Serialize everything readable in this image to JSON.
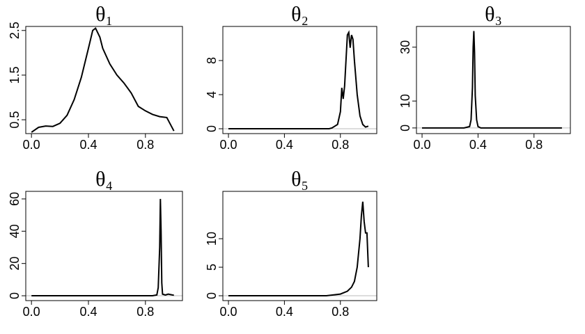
{
  "chart_data": [
    {
      "type": "line",
      "title": "θ₁",
      "xlim": [
        -0.04,
        1.06
      ],
      "ylim": [
        0.19,
        2.59
      ],
      "xticks": [
        {
          "value": 0,
          "label": "0.0"
        },
        {
          "value": 0.4,
          "label": "0.4"
        },
        {
          "value": 0.8,
          "label": "0.8"
        }
      ],
      "yticks": [
        0.5,
        1.5,
        2.5
      ],
      "color": "#000000",
      "x": [
        0,
        0.05,
        0.1,
        0.15,
        0.2,
        0.25,
        0.3,
        0.35,
        0.4,
        0.43,
        0.45,
        0.48,
        0.5,
        0.55,
        0.6,
        0.65,
        0.7,
        0.75,
        0.8,
        0.85,
        0.9,
        0.95,
        1.0
      ],
      "values": [
        0.22,
        0.33,
        0.36,
        0.35,
        0.42,
        0.6,
        0.95,
        1.45,
        2.1,
        2.5,
        2.55,
        2.35,
        2.1,
        1.75,
        1.5,
        1.32,
        1.1,
        0.8,
        0.7,
        0.62,
        0.57,
        0.55,
        0.25
      ]
    },
    {
      "type": "line",
      "title": "θ₂",
      "xlim": [
        -0.04,
        1.06
      ],
      "ylim": [
        -0.57,
        12
      ],
      "xticks": [
        {
          "value": 0,
          "label": "0.0"
        },
        {
          "value": 0.4,
          "label": "0.4"
        },
        {
          "value": 0.8,
          "label": "0.8"
        }
      ],
      "yticks": [
        0,
        4,
        8
      ],
      "color": "#000000",
      "x": [
        0,
        0.72,
        0.74,
        0.78,
        0.8,
        0.81,
        0.82,
        0.83,
        0.84,
        0.85,
        0.86,
        0.87,
        0.88,
        0.89,
        0.9,
        0.92,
        0.94,
        0.96,
        0.98,
        1.0
      ],
      "values": [
        0,
        0,
        0.1,
        0.5,
        2,
        4.8,
        3.5,
        5,
        8,
        11,
        11.3,
        9.5,
        11,
        10.5,
        8,
        4,
        1.5,
        0.5,
        0.2,
        0.3
      ]
    },
    {
      "type": "line",
      "title": "θ₃",
      "xlim": [
        -0.04,
        1.06
      ],
      "ylim": [
        -2.1,
        37.7
      ],
      "xticks": [
        {
          "value": 0,
          "label": "0.0"
        },
        {
          "value": 0.4,
          "label": "0.4"
        },
        {
          "value": 0.8,
          "label": "0.8"
        }
      ],
      "yticks": [
        0,
        10,
        30
      ],
      "color": "#000000",
      "x": [
        0,
        0.3,
        0.34,
        0.35,
        0.36,
        0.365,
        0.37,
        0.375,
        0.38,
        0.39,
        0.4,
        0.42,
        1.0
      ],
      "values": [
        0,
        0,
        0.5,
        3,
        15,
        30,
        36,
        28,
        12,
        3,
        0.5,
        0,
        0
      ]
    },
    {
      "type": "line",
      "title": "θ₄",
      "xlim": [
        -0.04,
        1.06
      ],
      "ylim": [
        -3,
        64.7
      ],
      "xticks": [
        {
          "value": 0,
          "label": "0.0"
        },
        {
          "value": 0.4,
          "label": "0.4"
        },
        {
          "value": 0.8,
          "label": "0.8"
        }
      ],
      "yticks": [
        0,
        20,
        40,
        60
      ],
      "color": "#000000",
      "x": [
        0,
        0.85,
        0.88,
        0.89,
        0.9,
        0.905,
        0.91,
        0.915,
        0.92,
        0.94,
        0.96,
        1.0
      ],
      "values": [
        0,
        0,
        0.5,
        5,
        30,
        60,
        40,
        8,
        1,
        0.5,
        1,
        0.3
      ]
    },
    {
      "type": "line",
      "title": "θ₅",
      "xlim": [
        -0.04,
        1.06
      ],
      "ylim": [
        -0.85,
        18.3
      ],
      "xticks": [
        {
          "value": 0,
          "label": "0.0"
        },
        {
          "value": 0.4,
          "label": "0.4"
        },
        {
          "value": 0.8,
          "label": "0.8"
        }
      ],
      "yticks": [
        0,
        5,
        10
      ],
      "color": "#000000",
      "x": [
        0,
        0.7,
        0.8,
        0.85,
        0.88,
        0.9,
        0.92,
        0.94,
        0.95,
        0.96,
        0.97,
        0.98,
        0.99,
        1.0
      ],
      "values": [
        0,
        0,
        0.3,
        0.8,
        1.5,
        2.5,
        5,
        10,
        14,
        16.5,
        13,
        11,
        11,
        5
      ]
    }
  ]
}
